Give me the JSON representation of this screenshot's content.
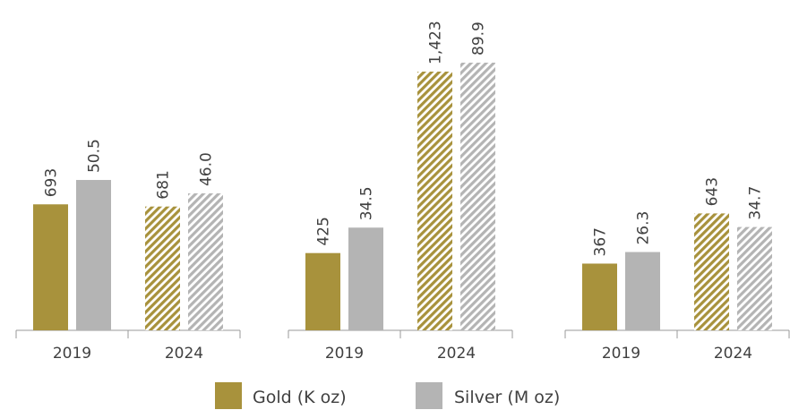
{
  "colors": {
    "gold": "#a8923c",
    "silver": "#b4b4b4",
    "axis": "#9a9a9a",
    "text": "#404040"
  },
  "legend": {
    "gold_label": "Gold (K oz)",
    "silver_label": "Silver (M oz)"
  },
  "chart_data": [
    {
      "type": "bar",
      "categories": [
        "2019",
        "2024"
      ],
      "series": [
        {
          "name": "Gold (K oz)",
          "values": [
            693,
            681
          ],
          "labels": [
            "693",
            "681"
          ],
          "pattern": [
            "solid",
            "hatched"
          ]
        },
        {
          "name": "Silver (M oz)",
          "values": [
            50.5,
            46.0
          ],
          "labels": [
            "50.5",
            "46.0"
          ],
          "pattern": [
            "solid",
            "hatched"
          ]
        }
      ]
    },
    {
      "type": "bar",
      "categories": [
        "2019",
        "2024"
      ],
      "series": [
        {
          "name": "Gold (K oz)",
          "values": [
            425,
            1423
          ],
          "labels": [
            "425",
            "1,423"
          ],
          "pattern": [
            "solid",
            "hatched"
          ]
        },
        {
          "name": "Silver (M oz)",
          "values": [
            34.5,
            89.9
          ],
          "labels": [
            "34.5",
            "89.9"
          ],
          "pattern": [
            "solid",
            "hatched"
          ]
        }
      ]
    },
    {
      "type": "bar",
      "categories": [
        "2019",
        "2024"
      ],
      "series": [
        {
          "name": "Gold (K oz)",
          "values": [
            367,
            643
          ],
          "labels": [
            "367",
            "643"
          ],
          "pattern": [
            "solid",
            "hatched"
          ]
        },
        {
          "name": "Silver (M oz)",
          "values": [
            26.3,
            34.7
          ],
          "labels": [
            "26.3",
            "34.7"
          ],
          "pattern": [
            "solid",
            "hatched"
          ]
        }
      ]
    }
  ]
}
